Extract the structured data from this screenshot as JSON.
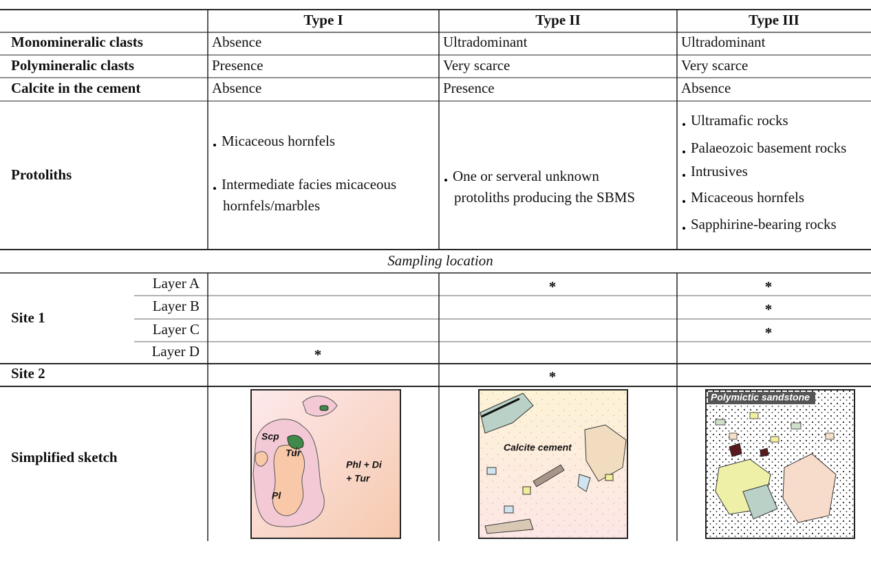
{
  "table": {
    "header": [
      "Type I",
      "Type II",
      "Type III"
    ],
    "rows": [
      {
        "label": "Monomineralic clasts",
        "cells": [
          "Absence",
          "Ultradominant",
          "Ultradominant"
        ]
      },
      {
        "label": "Polymineralic clasts",
        "cells": [
          "Presence",
          "Very scarce",
          "Very scarce"
        ]
      },
      {
        "label": "Calcite in the cement",
        "cells": [
          "Absence",
          "Presence",
          "Absence"
        ]
      }
    ],
    "protoliths": {
      "label": "Protoliths",
      "cells": [
        [
          [
            "Micaceous hornfels"
          ],
          [
            "Intermediate facies micaceous",
            "hornfels/marbles"
          ]
        ],
        [
          [
            "One or serveral unknown",
            "protoliths producing the SBMS"
          ]
        ],
        [
          [
            "Ultramafic rocks"
          ],
          [
            "Palaeozoic basement rocks"
          ],
          [
            "Intrusives"
          ],
          [
            "Micaceous hornfels"
          ],
          [
            "Sapphirine-bearing rocks"
          ]
        ]
      ]
    },
    "sampling": {
      "title": "Sampling location",
      "sites": [
        {
          "label": "Site 1",
          "layers": [
            {
              "label": "Layer A",
              "cells": [
                null,
                "*",
                "*"
              ]
            },
            {
              "label": "Layer B",
              "cells": [
                null,
                null,
                "*"
              ]
            },
            {
              "label": "Layer C",
              "cells": [
                null,
                null,
                "*"
              ]
            },
            {
              "label": "Layer D",
              "cells": [
                "*",
                null,
                null
              ]
            }
          ]
        },
        {
          "label": "Site 2",
          "cells": [
            null,
            "*",
            null
          ]
        }
      ]
    },
    "sketch": {
      "label": "Simplified sketch",
      "panels": [
        {
          "labels": [
            "Scp",
            "Tur",
            "Pl",
            "Phl + Di",
            "+ Tur"
          ]
        },
        {
          "labels": [
            "Calcite cement"
          ]
        },
        {
          "labels": [
            "Polymictic sandstone"
          ]
        }
      ]
    }
  }
}
